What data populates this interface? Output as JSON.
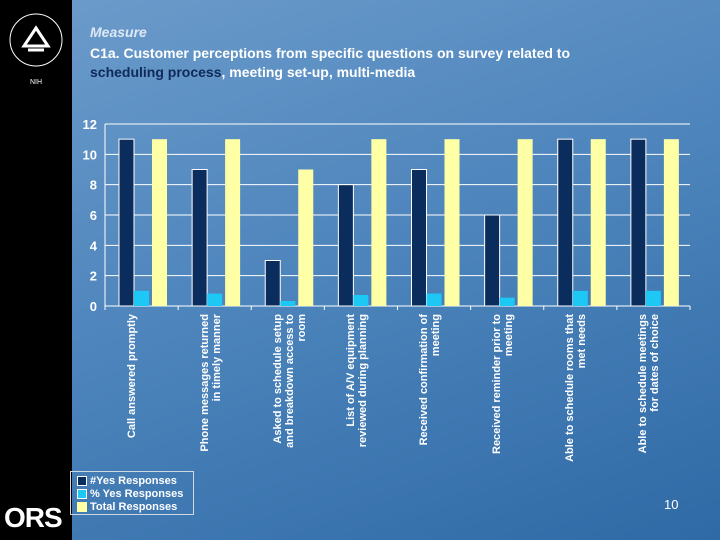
{
  "header": {
    "measure": "Measure",
    "title_before": "C1a. Customer perceptions from specific questions on survey related to ",
    "title_highlight": "scheduling process",
    "title_after": ", meeting set-up, multi-media"
  },
  "logo": {
    "org": "NATIONAL INSTITUTES OF HEALTH",
    "unit": "ORS"
  },
  "page_number": "10",
  "chart_data": {
    "type": "bar",
    "categories": [
      "Call answered promptly",
      "Phone messages returned in timely manner",
      "Asked to schedule setup and breakdown access to room",
      "List of A/V equipment reviewed during planning",
      "Received confirmation of meeting",
      "Received reminder prior to meeting",
      "Able to schedule rooms that met needs",
      "Able to schedule meetings for dates of choice"
    ],
    "series": [
      {
        "name": "#Yes Responses",
        "color": "#0a2d5e",
        "values": [
          11,
          9,
          3,
          8,
          9,
          6,
          11,
          11
        ]
      },
      {
        "name": "% Yes Responses",
        "color": "#1ec8f5",
        "values": [
          1.0,
          0.82,
          0.33,
          0.73,
          0.82,
          0.55,
          1.0,
          1.0
        ]
      },
      {
        "name": "Total Responses",
        "color": "#ffffa6",
        "values": [
          11,
          11,
          9,
          11,
          11,
          11,
          11,
          11
        ]
      }
    ],
    "ylim": [
      0,
      12
    ],
    "yticks": [
      "0",
      "2",
      "4",
      "6",
      "8",
      "10",
      "12"
    ],
    "grid": true,
    "legend": "bottom-left"
  }
}
